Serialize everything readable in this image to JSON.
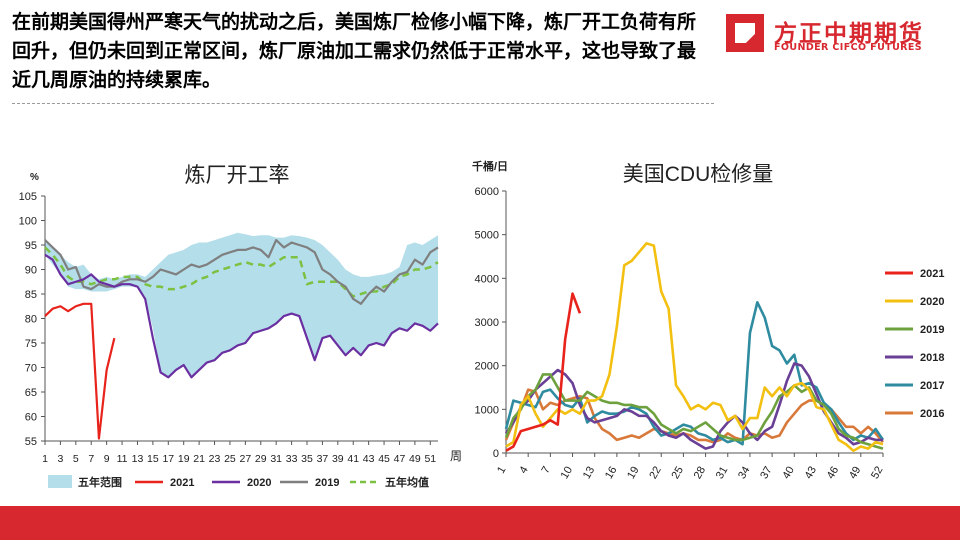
{
  "headline": "在前期美国得州严寒天气的扰动之后，美国炼厂检修小幅下降，炼厂开工负荷有所回升，但仍未回到正常区间，炼厂原油加工需求仍然低于正常水平，这也导致了最近几周原油的持续累库。",
  "logo": {
    "name_cn": "方正中期期货",
    "name_en": "FOUNDER CIFCO FUTURES",
    "brand_color": "#d7282f"
  },
  "chart_data": [
    {
      "type": "line",
      "title": "炼厂开工率",
      "ylabel": "%",
      "xlabel": "周",
      "ylim": [
        55,
        105
      ],
      "yticks": [
        55,
        60,
        65,
        70,
        75,
        80,
        85,
        90,
        95,
        100,
        105
      ],
      "xticks": [
        1,
        3,
        5,
        7,
        9,
        11,
        13,
        15,
        17,
        19,
        21,
        23,
        25,
        27,
        29,
        31,
        33,
        35,
        37,
        39,
        41,
        43,
        45,
        47,
        49,
        51
      ],
      "grid": false,
      "legend": "bottom",
      "band": {
        "name": "五年范围",
        "color": "#b4deea",
        "upper": [
          95.5,
          94.5,
          93.0,
          91.5,
          90.5,
          91.0,
          89.0,
          88.0,
          88.5,
          88.0,
          88.5,
          89.0,
          89.0,
          88.5,
          90.0,
          91.5,
          93.0,
          93.5,
          94.0,
          95.0,
          95.5,
          95.5,
          96.0,
          96.5,
          97.0,
          97.5,
          97.2,
          96.8,
          97.0,
          97.0,
          96.5,
          96.5,
          97.0,
          96.8,
          96.5,
          96.0,
          95.0,
          93.5,
          92.0,
          90.0,
          89.0,
          88.5,
          88.5,
          88.8,
          89.0,
          89.5,
          90.5,
          95.0,
          95.5,
          95.0,
          96.0,
          97.0
        ],
        "lower": [
          93.0,
          91.0,
          89.0,
          86.5,
          86.0,
          86.0,
          85.5,
          85.5,
          85.5,
          86.0,
          86.5,
          86.5,
          86.5,
          84.5,
          78.0,
          69.0,
          68.0,
          69.5,
          70.5,
          68.0,
          69.5,
          71.0,
          71.5,
          73.0,
          73.5,
          74.5,
          75.0,
          77.0,
          77.5,
          78.0,
          79.0,
          80.5,
          81.0,
          80.5,
          76.0,
          71.5,
          76.0,
          76.5,
          74.5,
          72.5,
          74.0,
          72.5,
          74.5,
          75.0,
          74.5,
          77.0,
          78.0,
          77.5,
          79.0,
          78.5,
          77.5,
          79.0
        ]
      },
      "series": [
        {
          "name": "2021",
          "color": "#e8231b",
          "values": [
            80.5,
            82.0,
            82.5,
            81.5,
            82.5,
            83.0,
            83.0,
            55.5,
            69.5,
            76.0
          ]
        },
        {
          "name": "2020",
          "color": "#6a2fa0",
          "values": [
            93.0,
            92.0,
            89.0,
            87.0,
            87.5,
            88.0,
            89.0,
            87.5,
            87.0,
            86.5,
            87.0,
            87.0,
            86.5,
            84.0,
            76.0,
            69.0,
            68.0,
            69.5,
            70.5,
            68.0,
            69.5,
            71.0,
            71.5,
            73.0,
            73.5,
            74.5,
            75.0,
            77.0,
            77.5,
            78.0,
            79.0,
            80.5,
            81.0,
            80.5,
            76.0,
            71.5,
            76.0,
            76.5,
            74.5,
            72.5,
            74.0,
            72.5,
            74.5,
            75.0,
            74.5,
            77.0,
            78.0,
            77.5,
            79.0,
            78.5,
            77.5,
            79.0
          ]
        },
        {
          "name": "2019",
          "color": "#7f7f7f",
          "values": [
            96.0,
            94.5,
            93.0,
            90.0,
            90.5,
            86.5,
            86.0,
            87.0,
            86.5,
            86.5,
            87.5,
            88.0,
            88.0,
            87.5,
            88.5,
            90.0,
            89.5,
            89.0,
            90.0,
            91.0,
            90.5,
            91.0,
            92.0,
            93.0,
            93.5,
            94.0,
            94.0,
            94.5,
            94.0,
            92.5,
            96.0,
            94.5,
            95.5,
            95.0,
            94.5,
            93.5,
            90.0,
            89.0,
            87.5,
            86.5,
            84.0,
            83.0,
            85.0,
            86.5,
            85.5,
            87.5,
            89.0,
            89.5,
            92.0,
            91.0,
            93.5,
            94.5
          ]
        },
        {
          "name": "五年均值",
          "color": "#7cc142",
          "dashed": true,
          "values": [
            94.5,
            93.0,
            91.0,
            88.5,
            87.5,
            87.5,
            87.0,
            87.5,
            88.0,
            88.0,
            88.5,
            88.5,
            88.5,
            87.0,
            86.5,
            86.5,
            86.0,
            86.0,
            86.5,
            87.0,
            88.0,
            88.5,
            89.5,
            90.0,
            90.5,
            91.0,
            91.5,
            91.0,
            91.0,
            90.5,
            91.5,
            92.5,
            92.5,
            92.5,
            87.0,
            87.5,
            87.5,
            87.5,
            87.5,
            86.0,
            84.5,
            85.0,
            85.5,
            85.5,
            86.5,
            87.0,
            88.5,
            89.0,
            90.0,
            90.0,
            90.5,
            91.5
          ]
        }
      ],
      "legend_entries": [
        "五年范围",
        "2021",
        "2020",
        "2019",
        "五年均值"
      ]
    },
    {
      "type": "line",
      "title": "美国CDU检修量",
      "ylabel": "千桶/日",
      "ylim": [
        0,
        6000
      ],
      "yticks": [
        0,
        1000,
        2000,
        3000,
        4000,
        5000,
        6000
      ],
      "xticks": [
        1,
        4,
        7,
        10,
        13,
        16,
        19,
        22,
        25,
        28,
        31,
        34,
        37,
        40,
        43,
        46,
        49,
        52
      ],
      "grid": false,
      "legend": "right",
      "series": [
        {
          "name": "2021",
          "color": "#e8231b",
          "values": [
            50,
            150,
            500,
            550,
            600,
            650,
            750,
            650,
            2600,
            3650,
            3200
          ]
        },
        {
          "name": "2020",
          "color": "#f3c012",
          "values": [
            150,
            250,
            1100,
            1300,
            900,
            600,
            800,
            1000,
            900,
            1000,
            900,
            1200,
            1200,
            1300,
            1800,
            2900,
            4300,
            4400,
            4600,
            4800,
            4750,
            3700,
            3300,
            1550,
            1300,
            1000,
            1100,
            1000,
            1150,
            1100,
            750,
            850,
            550,
            800,
            800,
            1500,
            1300,
            1500,
            1300,
            1550,
            1600,
            1450,
            1050,
            1000,
            650,
            300,
            200,
            50,
            150,
            100,
            250,
            200
          ]
        },
        {
          "name": "2019",
          "color": "#6da13e",
          "values": [
            350,
            800,
            1000,
            1300,
            1450,
            1800,
            1800,
            1500,
            1200,
            1200,
            1200,
            1400,
            1300,
            1200,
            1150,
            1150,
            1100,
            1100,
            1050,
            1050,
            900,
            650,
            550,
            450,
            550,
            500,
            600,
            700,
            550,
            400,
            350,
            300,
            300,
            350,
            400,
            700,
            950,
            1300,
            1400,
            1550,
            1400,
            1500,
            1200,
            1100,
            900,
            550,
            400,
            350,
            250,
            200,
            150,
            100
          ]
        },
        {
          "name": "2018",
          "color": "#6a3f96",
          "values": [
            450,
            700,
            1050,
            1200,
            1450,
            1600,
            1750,
            1900,
            1800,
            1600,
            1100,
            800,
            700,
            750,
            800,
            850,
            1000,
            950,
            850,
            850,
            700,
            500,
            400,
            350,
            450,
            300,
            200,
            100,
            150,
            500,
            700,
            850,
            700,
            450,
            300,
            500,
            600,
            1100,
            1650,
            2050,
            2000,
            1750,
            1350,
            950,
            700,
            450,
            350,
            200,
            250,
            350,
            300,
            300
          ]
        },
        {
          "name": "2017",
          "color": "#2e8ba0",
          "values": [
            550,
            1200,
            1150,
            1100,
            1050,
            1400,
            1450,
            1250,
            1100,
            1050,
            1250,
            700,
            850,
            950,
            900,
            900,
            950,
            1050,
            1000,
            900,
            600,
            400,
            450,
            550,
            650,
            600,
            450,
            400,
            300,
            350,
            250,
            300,
            200,
            2750,
            3450,
            3100,
            2450,
            2350,
            2050,
            2250,
            1550,
            1600,
            1500,
            1150,
            1000,
            700,
            450,
            300,
            400,
            350,
            550,
            300
          ]
        },
        {
          "name": "2016",
          "color": "#d8793a",
          "values": [
            300,
            700,
            1000,
            1450,
            1400,
            1000,
            1150,
            1100,
            1200,
            1250,
            1300,
            1250,
            800,
            550,
            450,
            300,
            350,
            400,
            350,
            450,
            550,
            500,
            450,
            400,
            450,
            400,
            300,
            300,
            250,
            300,
            450,
            350,
            300,
            450,
            400,
            450,
            350,
            400,
            700,
            900,
            1100,
            1200,
            1200,
            1100,
            1000,
            800,
            600,
            600,
            450,
            600,
            450,
            250
          ]
        }
      ]
    }
  ]
}
